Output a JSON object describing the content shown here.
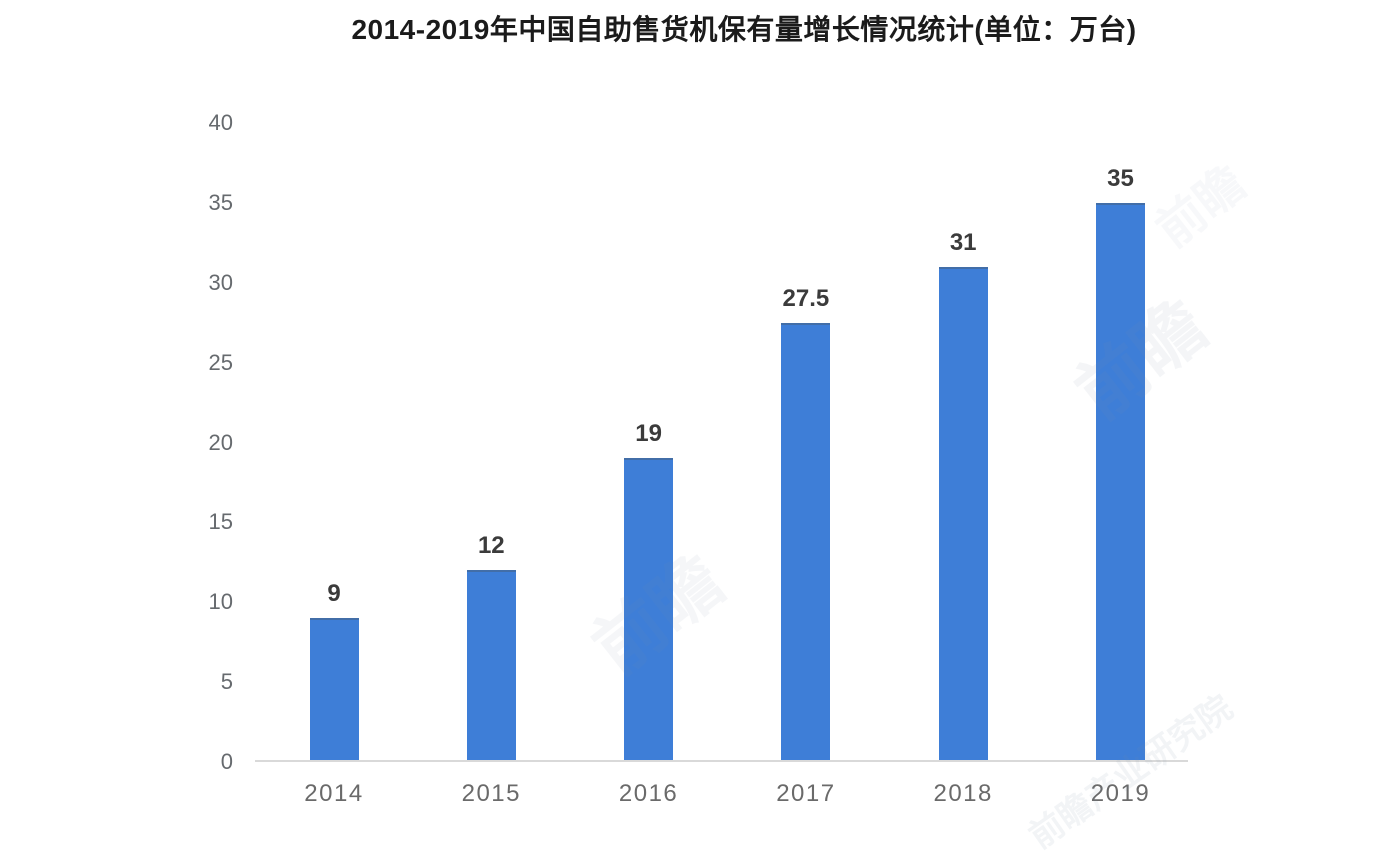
{
  "page": {
    "background": "#ffffff"
  },
  "watermark": {
    "text_short": "前瞻",
    "text_long": "前瞻产业研究院",
    "color": "#7d8fa8"
  },
  "chart_data": {
    "type": "bar",
    "title": "2014-2019年中国自助售货机保有量增长情况统计(单位：万台)",
    "categories": [
      "2014",
      "2015",
      "2016",
      "2017",
      "2018",
      "2019"
    ],
    "values": [
      9,
      12,
      19,
      27.5,
      31,
      35
    ],
    "value_labels": [
      "9",
      "12",
      "19",
      "27.5",
      "31",
      "35"
    ],
    "yticks": [
      0,
      5,
      10,
      15,
      20,
      25,
      30,
      35,
      40
    ],
    "ylim": [
      0,
      40
    ],
    "xlabel": "",
    "ylabel": "",
    "grid": false,
    "legend": null,
    "bar_color": "#3E7ED7",
    "axis_line_color": "#d9d9d9",
    "title_color": "#1b1b1b",
    "tick_label_color": "#666a6e",
    "value_label_color": "#3b3b3b"
  }
}
